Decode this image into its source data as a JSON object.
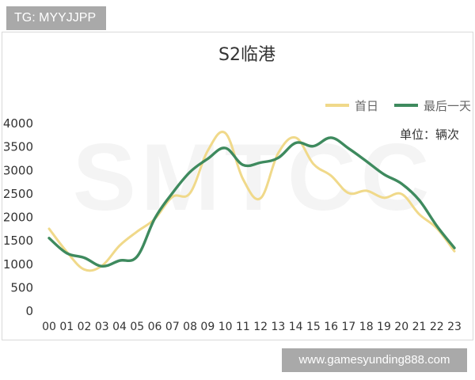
{
  "tags": {
    "top": "TG: MYYJJPP",
    "bottom": "www.gamesyunding888.com"
  },
  "watermark": "SMTCC",
  "colors": {
    "first_day": "#f0d98a",
    "last_day": "#3e8a5e",
    "axis_text": "#333333",
    "grid": "#e6e6e6",
    "tag_bg": "#a9a9a9"
  },
  "chart_data": {
    "type": "line",
    "title": "S2临港",
    "unit_label": "单位：辆次",
    "xlabel": "",
    "ylabel": "",
    "ylim": [
      0,
      4000
    ],
    "yticks": [
      0,
      500,
      1000,
      1500,
      2000,
      2500,
      3000,
      3500,
      4000
    ],
    "grid": false,
    "legend_position": "top-right",
    "categories": [
      "00",
      "01",
      "02",
      "03",
      "04",
      "05",
      "06",
      "07",
      "08",
      "09",
      "10",
      "11",
      "12",
      "13",
      "14",
      "15",
      "16",
      "17",
      "18",
      "19",
      "20",
      "21",
      "22",
      "23"
    ],
    "series": [
      {
        "name": "首日",
        "color": "#f0d98a",
        "values": [
          1740,
          1250,
          870,
          950,
          1380,
          1680,
          1950,
          2420,
          2500,
          3400,
          3780,
          2800,
          2390,
          3350,
          3680,
          3120,
          2870,
          2500,
          2550,
          2400,
          2480,
          2050,
          1750,
          1260
        ]
      },
      {
        "name": "最后一天",
        "color": "#3e8a5e",
        "values": [
          1540,
          1220,
          1120,
          940,
          1060,
          1150,
          1960,
          2500,
          2950,
          3230,
          3460,
          3100,
          3150,
          3250,
          3570,
          3500,
          3680,
          3450,
          3180,
          2900,
          2700,
          2350,
          1800,
          1330
        ]
      }
    ]
  }
}
